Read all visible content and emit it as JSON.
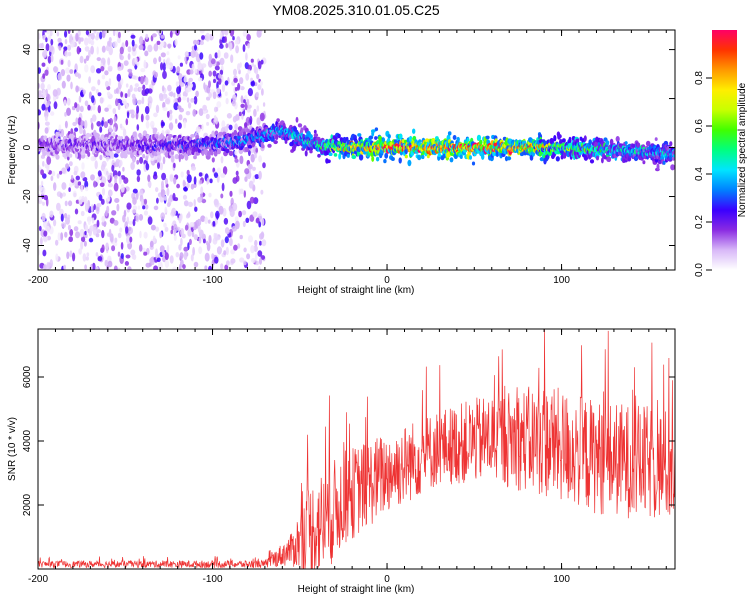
{
  "title": "YM08.2025.310.01.05.C25",
  "chart_data": [
    {
      "type": "heatmap",
      "xlabel": "Height of straight line (km)",
      "ylabel": "Frequency (Hz)",
      "xlim": [
        -200,
        165
      ],
      "ylim": [
        -50,
        48
      ],
      "xticks": [
        -200,
        -100,
        0,
        100
      ],
      "yticks": [
        -40,
        -20,
        0,
        20,
        40
      ],
      "colorbar": {
        "label": "Normalized spectral amplitude",
        "range": [
          0,
          1
        ],
        "ticks": [
          "0.0",
          "0.2",
          "0.4",
          "0.6",
          "0.8"
        ],
        "colors": [
          "#ffffff",
          "#d8b8f8",
          "#8a2be2",
          "#3a00ff",
          "#0080ff",
          "#00e5ff",
          "#00ff80",
          "#40ff00",
          "#c8ff00",
          "#ffee00",
          "#ff9900",
          "#ff3300",
          "#ff0066"
        ]
      },
      "signal_line": [
        {
          "x": -200,
          "f": 1,
          "amp": 0.2
        },
        {
          "x": -150,
          "f": 1,
          "amp": 0.22
        },
        {
          "x": -110,
          "f": 1,
          "amp": 0.3
        },
        {
          "x": -90,
          "f": 2,
          "amp": 0.35
        },
        {
          "x": -70,
          "f": 5,
          "amp": 0.4
        },
        {
          "x": -60,
          "f": 7,
          "amp": 0.45
        },
        {
          "x": -50,
          "f": 4,
          "amp": 0.45
        },
        {
          "x": -40,
          "f": 1,
          "amp": 0.5
        },
        {
          "x": -25,
          "f": 0,
          "amp": 0.8
        },
        {
          "x": 0,
          "f": 0,
          "amp": 0.95
        },
        {
          "x": 50,
          "f": 0,
          "amp": 1.0
        },
        {
          "x": 80,
          "f": 0,
          "amp": 0.9
        },
        {
          "x": 100,
          "f": 0,
          "amp": 0.65
        },
        {
          "x": 130,
          "f": -1,
          "amp": 0.5
        },
        {
          "x": 165,
          "f": -3,
          "amp": 0.45
        }
      ],
      "noise_extent_x": [
        -200,
        -70
      ]
    },
    {
      "type": "line",
      "xlabel": "Height of straight line (km)",
      "ylabel": "SNR (10 * v/v)",
      "xlim": [
        -200,
        165
      ],
      "ylim": [
        0,
        7500
      ],
      "xticks": [
        -200,
        -100,
        0,
        100
      ],
      "yticks": [
        2000,
        4000,
        6000
      ],
      "color": "#ee3333",
      "envelope": [
        {
          "x": -200,
          "mean": 150,
          "spread": 100
        },
        {
          "x": -70,
          "mean": 150,
          "spread": 120
        },
        {
          "x": -55,
          "mean": 600,
          "spread": 500
        },
        {
          "x": -45,
          "mean": 1200,
          "spread": 1500
        },
        {
          "x": -35,
          "mean": 1500,
          "spread": 1700
        },
        {
          "x": -25,
          "mean": 2200,
          "spread": 1500
        },
        {
          "x": 0,
          "mean": 3000,
          "spread": 1300
        },
        {
          "x": 30,
          "mean": 3800,
          "spread": 1200
        },
        {
          "x": 60,
          "mean": 4100,
          "spread": 1400
        },
        {
          "x": 90,
          "mean": 4000,
          "spread": 1800
        },
        {
          "x": 120,
          "mean": 3500,
          "spread": 1800
        },
        {
          "x": 165,
          "mean": 3200,
          "spread": 1800
        }
      ]
    }
  ]
}
